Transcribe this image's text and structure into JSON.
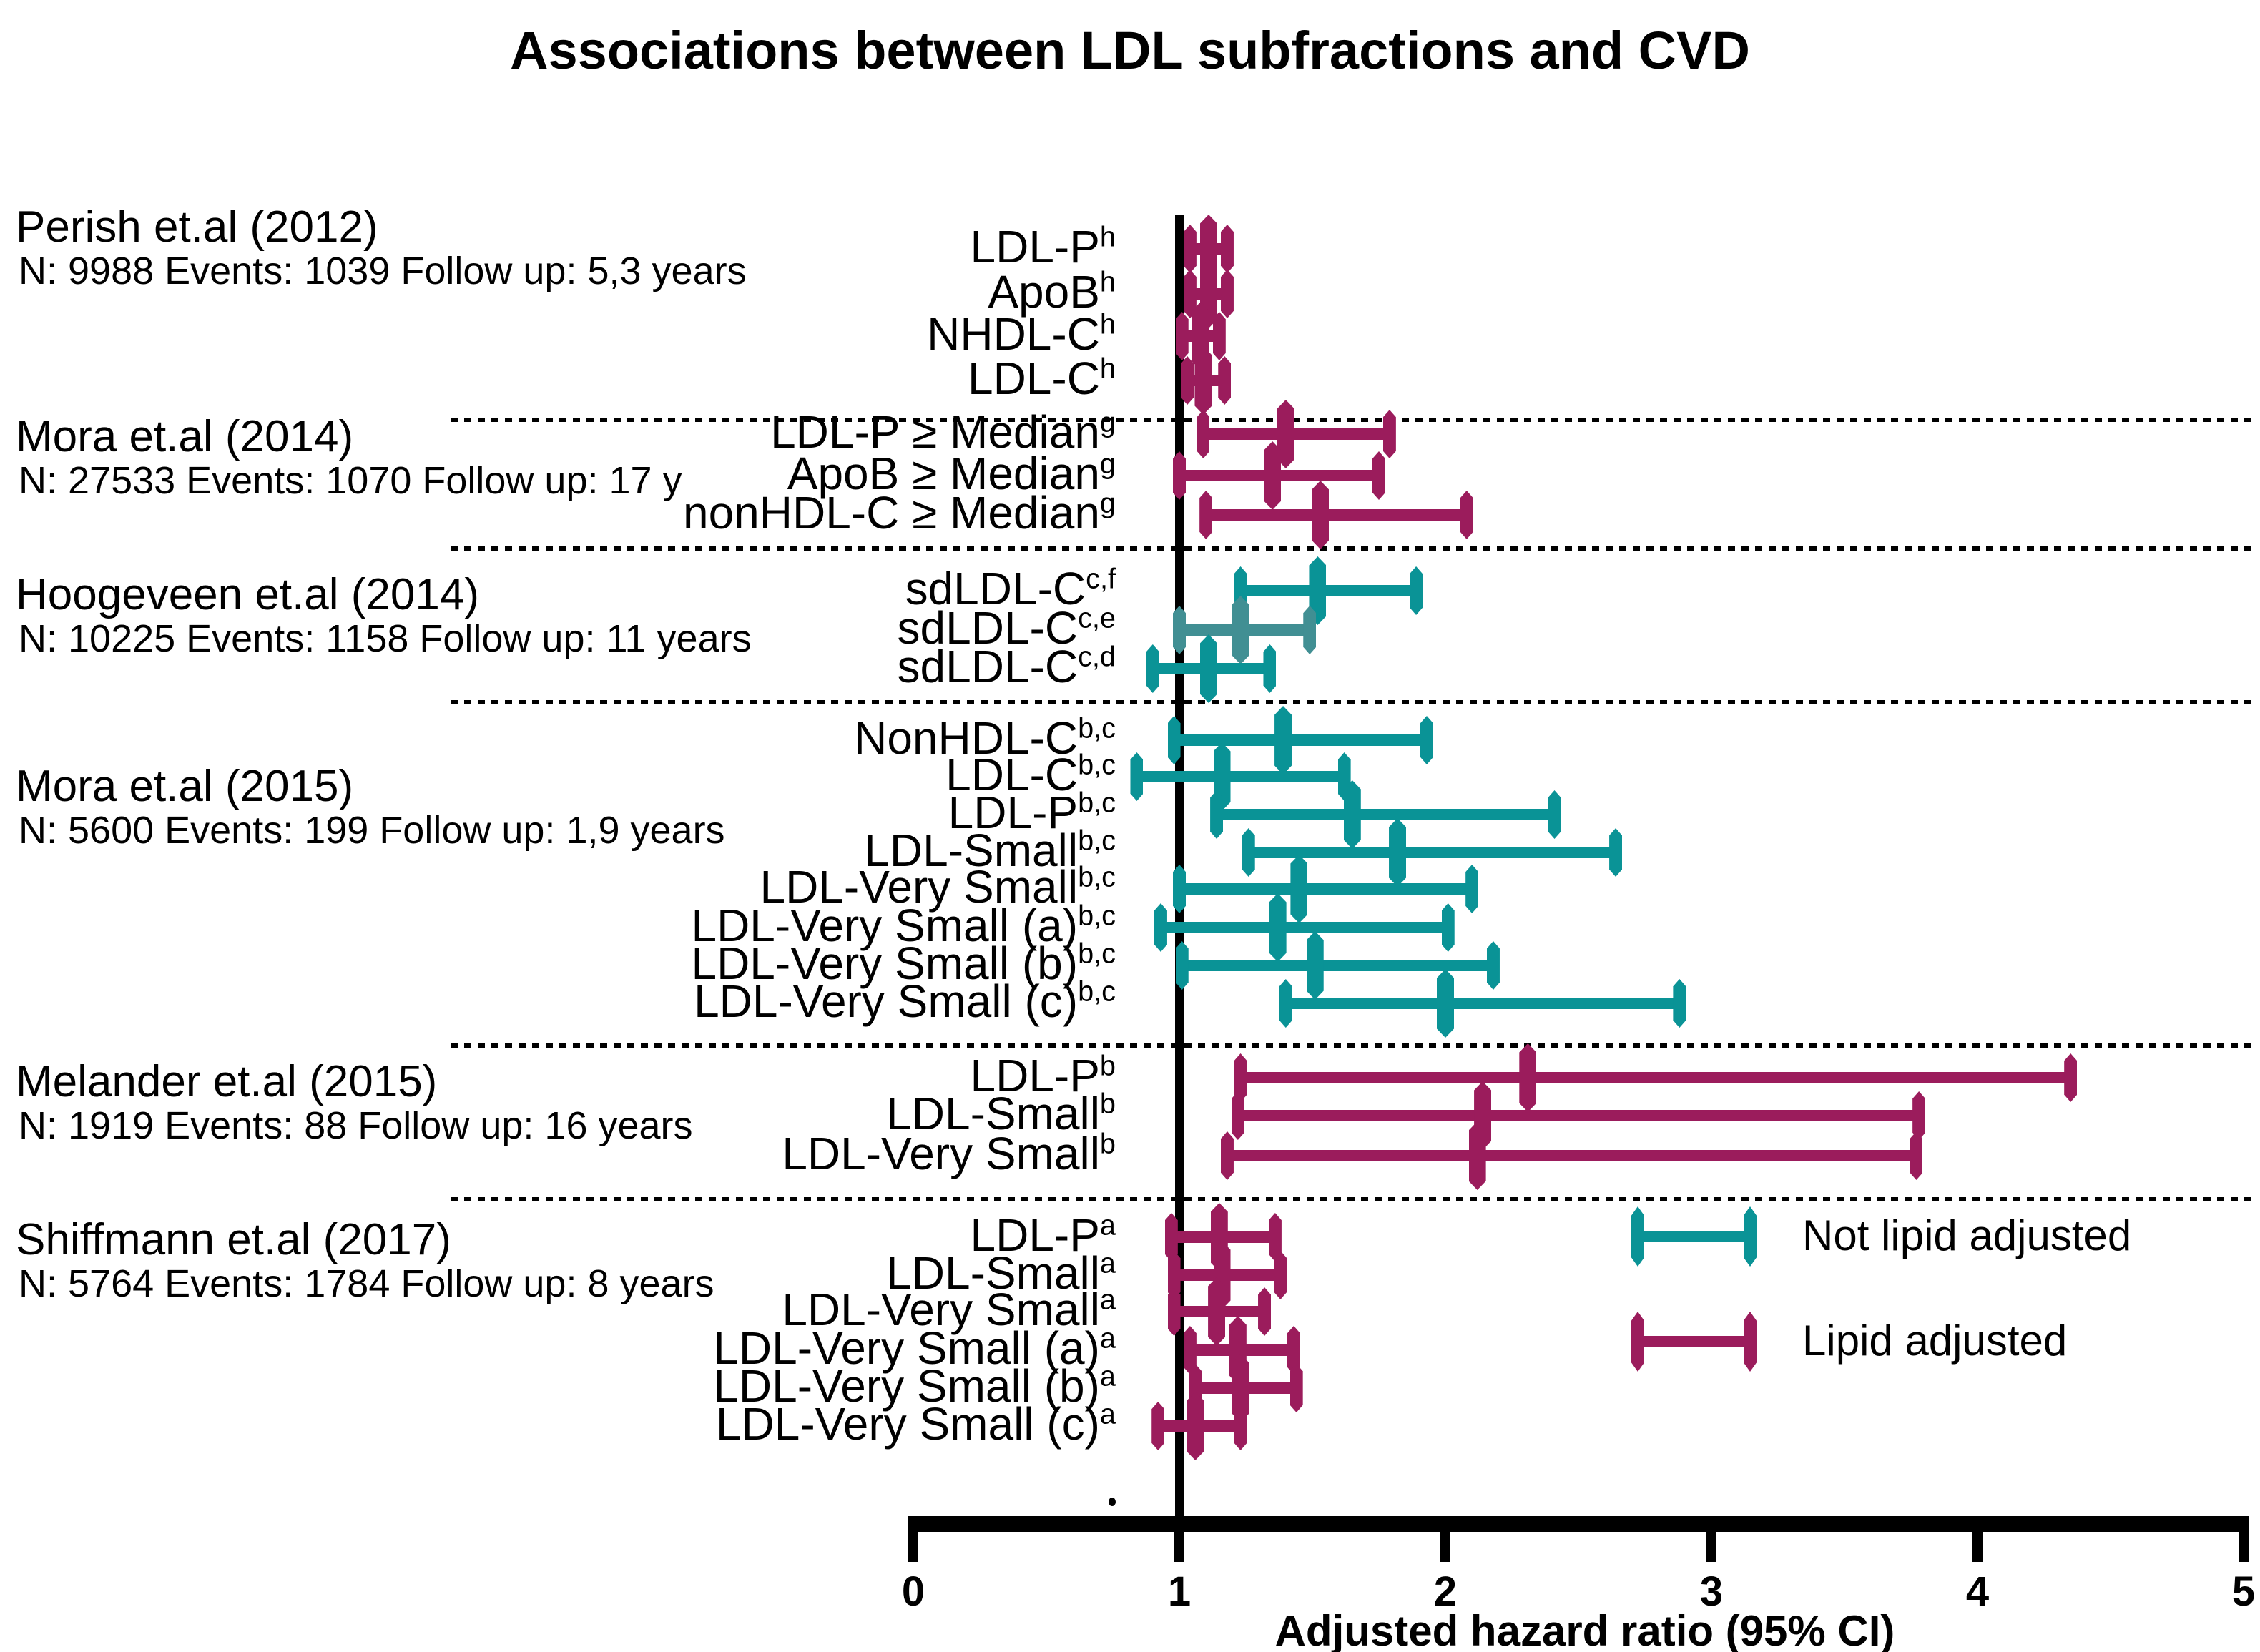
{
  "chart_data": {
    "type": "scatter",
    "variant": "forest-plot",
    "title": "Associations between LDL subfractions and CVD",
    "xlabel": "Adjusted hazard ratio (95% CI)",
    "xlim": [
      0,
      5
    ],
    "x_ticks": [
      "0",
      "1",
      "2",
      "3",
      "4",
      "5"
    ],
    "reference_line_x": 1,
    "grid": false,
    "colors": {
      "maroon": "#9B1C5C",
      "teal": "#0A9396",
      "teal_light": "#418F93",
      "axis": "#000000"
    },
    "legend": [
      {
        "label": "Not lipid adjusted",
        "color": "teal"
      },
      {
        "label": "Lipid adjusted",
        "color": "maroon"
      }
    ],
    "studies": [
      {
        "name": "Perish et.al (2012)",
        "info": "N: 9988 Events: 1039 Follow up: 5,3 years",
        "rows": [
          {
            "label": "LDL-P",
            "sup": "h",
            "hr": 1.11,
            "ci_low": 1.04,
            "ci_high": 1.18,
            "color": "maroon"
          },
          {
            "label": "ApoB",
            "sup": "h",
            "hr": 1.11,
            "ci_low": 1.04,
            "ci_high": 1.18,
            "color": "maroon"
          },
          {
            "label": "NHDL-C",
            "sup": "h",
            "hr": 1.08,
            "ci_low": 1.01,
            "ci_high": 1.15,
            "color": "maroon"
          },
          {
            "label": "LDL-C",
            "sup": "h",
            "hr": 1.09,
            "ci_low": 1.03,
            "ci_high": 1.17,
            "color": "maroon"
          }
        ]
      },
      {
        "name": "Mora et.al (2014)",
        "info": "N: 27533 Events: 1070 Follow up: 17 y",
        "rows": [
          {
            "label": "LDL-P ≥ Median",
            "sup": "g",
            "hr": 1.4,
            "ci_low": 1.09,
            "ci_high": 1.79,
            "color": "maroon"
          },
          {
            "label": "ApoB ≥ Median",
            "sup": "g",
            "hr": 1.35,
            "ci_low": 1.0,
            "ci_high": 1.75,
            "color": "maroon"
          },
          {
            "label": "nonHDL-C ≥ Median",
            "sup": "g",
            "hr": 1.53,
            "ci_low": 1.1,
            "ci_high": 2.08,
            "color": "maroon"
          }
        ]
      },
      {
        "name": "Hoogeveen et.al (2014)",
        "info": "N: 10225 Events: 1158 Follow up: 11 years",
        "rows": [
          {
            "label": "sdLDL-C",
            "sup": "c,f",
            "hr": 1.52,
            "ci_low": 1.23,
            "ci_high": 1.89,
            "color": "teal"
          },
          {
            "label": "sdLDL-C",
            "sup": "c,e",
            "hr": 1.23,
            "ci_low": 1.0,
            "ci_high": 1.49,
            "color": "teal_light"
          },
          {
            "label": "sdLDL-C",
            "sup": "c,d",
            "hr": 1.11,
            "ci_low": 0.9,
            "ci_high": 1.34,
            "color": "teal"
          }
        ]
      },
      {
        "name": "Mora et.al (2015)",
        "info": "N: 5600 Events: 199 Follow up: 1,9 years",
        "rows": [
          {
            "label": "NonHDL-C",
            "sup": "b,c",
            "hr": 1.39,
            "ci_low": 0.98,
            "ci_high": 1.93,
            "color": "teal"
          },
          {
            "label": "LDL-C",
            "sup": "b,c",
            "hr": 1.16,
            "ci_low": 0.84,
            "ci_high": 1.62,
            "color": "teal"
          },
          {
            "label": "LDL-P",
            "sup": "b,c",
            "hr": 1.65,
            "ci_low": 1.14,
            "ci_high": 2.41,
            "color": "teal"
          },
          {
            "label": "LDL-Small",
            "sup": "b,c",
            "hr": 1.82,
            "ci_low": 1.26,
            "ci_high": 2.64,
            "color": "teal"
          },
          {
            "label": "LDL-Very Small",
            "sup": "b,c",
            "hr": 1.45,
            "ci_low": 1.0,
            "ci_high": 2.1,
            "color": "teal"
          },
          {
            "label": "LDL-Very Small (a)",
            "sup": "b,c",
            "hr": 1.37,
            "ci_low": 0.93,
            "ci_high": 2.01,
            "color": "teal"
          },
          {
            "label": "LDL-Very Small (b)",
            "sup": "b,c",
            "hr": 1.51,
            "ci_low": 1.01,
            "ci_high": 2.18,
            "color": "teal"
          },
          {
            "label": "LDL-Very Small (c)",
            "sup": "b,c",
            "hr": 2.0,
            "ci_low": 1.4,
            "ci_high": 2.88,
            "color": "teal"
          }
        ]
      },
      {
        "name": "Melander et.al (2015)",
        "info": "N: 1919 Events: 88 Follow up: 16 years",
        "rows": [
          {
            "label": "LDL-P",
            "sup": "b",
            "hr": 2.31,
            "ci_low": 1.23,
            "ci_high": 4.35,
            "color": "maroon"
          },
          {
            "label": "LDL-Small",
            "sup": "b",
            "hr": 2.14,
            "ci_low": 1.22,
            "ci_high": 3.78,
            "color": "maroon"
          },
          {
            "label": "LDL-Very Small",
            "sup": "b",
            "hr": 2.12,
            "ci_low": 1.18,
            "ci_high": 3.77,
            "color": "maroon"
          }
        ]
      },
      {
        "name": "Shiffmann et.al (2017)",
        "info": "N: 5764 Events: 1784 Follow up: 8 years",
        "rows": [
          {
            "label": "LDL-P",
            "sup": "a",
            "hr": 1.15,
            "ci_low": 0.97,
            "ci_high": 1.36,
            "color": "maroon"
          },
          {
            "label": "LDL-Small",
            "sup": "a",
            "hr": 1.16,
            "ci_low": 0.98,
            "ci_high": 1.38,
            "color": "maroon"
          },
          {
            "label": "LDL-Very Small",
            "sup": "a",
            "hr": 1.14,
            "ci_low": 0.98,
            "ci_high": 1.32,
            "color": "maroon"
          },
          {
            "label": "LDL-Very Small (a)",
            "sup": "a",
            "hr": 1.22,
            "ci_low": 1.04,
            "ci_high": 1.43,
            "color": "maroon"
          },
          {
            "label": "LDL-Very Small (b)",
            "sup": "a",
            "hr": 1.23,
            "ci_low": 1.06,
            "ci_high": 1.44,
            "color": "maroon"
          },
          {
            "label": "LDL-Very Small (c)",
            "sup": "a",
            "hr": 1.06,
            "ci_low": 0.92,
            "ci_high": 1.23,
            "color": "maroon"
          }
        ]
      }
    ]
  }
}
